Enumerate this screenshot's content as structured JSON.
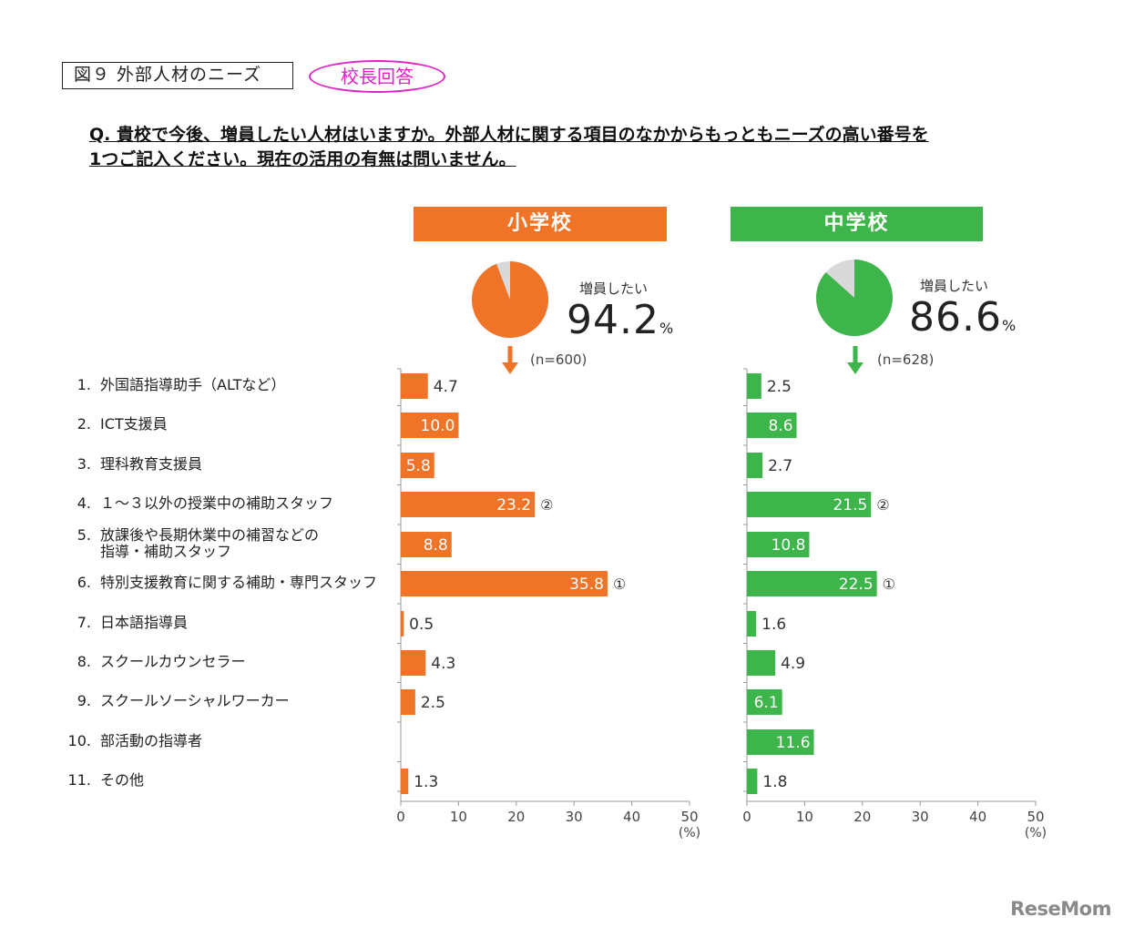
{
  "figure_title": "図９ 外部人材のニーズ",
  "badge": "校長回答",
  "question_line1": "Q. 貴校で今後、増員したい人材はいますか。外部人材に関する項目のなかからもっともニーズの高い番号を",
  "question_line2": "1つご記入ください。現在の活用の有無は問いません。",
  "logo": "ReseMom",
  "colors": {
    "elementary": "#f07427",
    "junior": "#3db54a",
    "pie_rest": "#d9d9d9",
    "badge": "#e020c8"
  },
  "chart_data": {
    "type": "bar",
    "orientation": "horizontal",
    "categories": [
      "外国語指導助手（ALTなど）",
      "ICT支援員",
      "理科教育支援員",
      "１～３以外の授業中の補助スタッフ",
      "放課後や長期休業中の補習などの\n指導・補助スタッフ",
      "特別支援教育に関する補助・専門スタッフ",
      "日本語指導員",
      "スクールカウンセラー",
      "スクールソーシャルワーカー",
      "部活動の指導者",
      "その他"
    ],
    "category_numbers": [
      "1.",
      "2.",
      "3.",
      "4.",
      "5.",
      "6.",
      "7.",
      "8.",
      "9.",
      "10.",
      "11."
    ],
    "xlim": [
      0,
      50
    ],
    "xticks": [
      0,
      10,
      20,
      30,
      40,
      50
    ],
    "unit": "(%)",
    "panels": [
      {
        "name": "小学校",
        "pie_caption": "増員したい",
        "pie_value": "94.2",
        "pie_unit": "%",
        "pie_fraction": 0.942,
        "n_label": "(n=600)",
        "values": [
          4.7,
          10.0,
          5.8,
          23.2,
          8.8,
          35.8,
          0.5,
          4.3,
          2.5,
          null,
          1.3
        ],
        "labels": [
          "4.7",
          "10.0",
          "5.8",
          "23.2",
          "8.8",
          "35.8",
          "0.5",
          "4.3",
          "2.5",
          "",
          "1.3"
        ],
        "ranks": [
          "",
          "",
          "",
          "②",
          "",
          "①",
          "",
          "",
          "",
          "",
          ""
        ]
      },
      {
        "name": "中学校",
        "pie_caption": "増員したい",
        "pie_value": "86.6",
        "pie_unit": "%",
        "pie_fraction": 0.866,
        "n_label": "(n=628)",
        "values": [
          2.5,
          8.6,
          2.7,
          21.5,
          10.8,
          22.5,
          1.6,
          4.9,
          6.1,
          11.6,
          1.8
        ],
        "labels": [
          "2.5",
          "8.6",
          "2.7",
          "21.5",
          "10.8",
          "22.5",
          "1.6",
          "4.9",
          "6.1",
          "11.6",
          "1.8"
        ],
        "ranks": [
          "",
          "",
          "",
          "②",
          "",
          "①",
          "",
          "",
          "",
          "",
          ""
        ]
      }
    ]
  }
}
